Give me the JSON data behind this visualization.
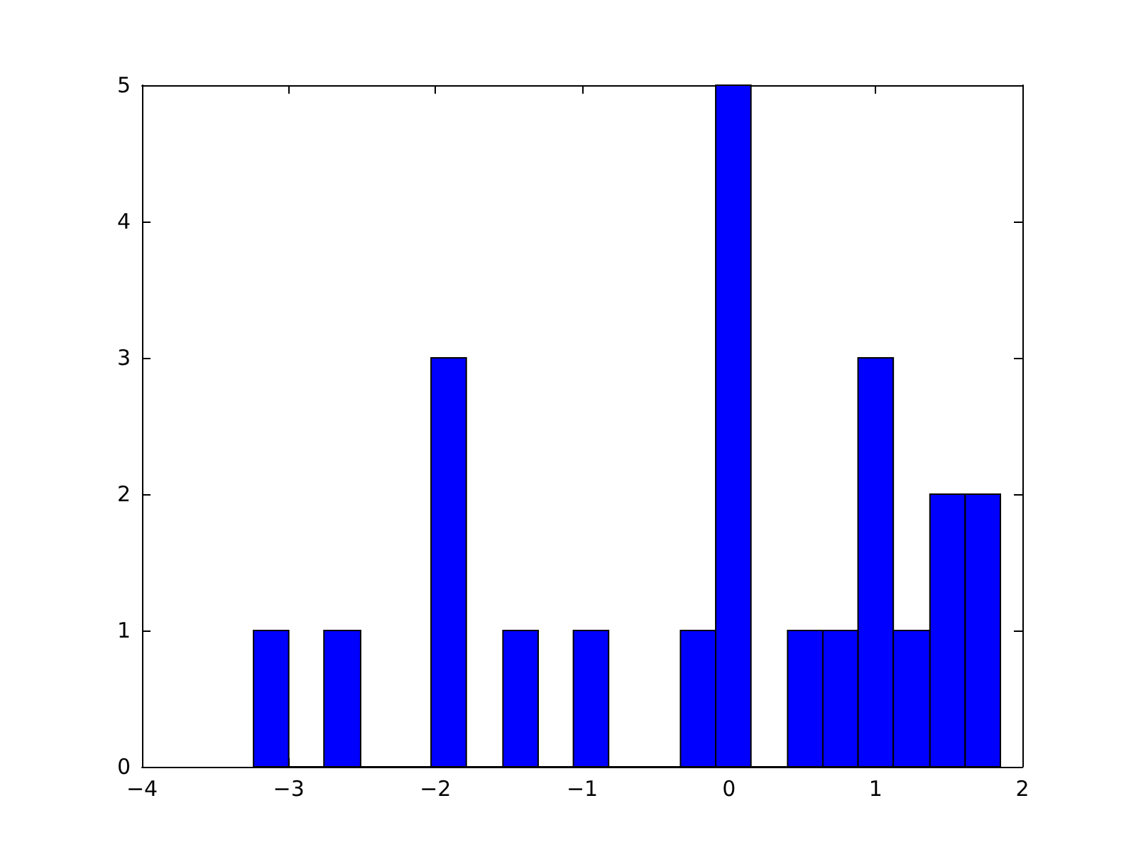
{
  "chart_data": {
    "type": "histogram",
    "bins": [
      -3.24,
      -3.0,
      -2.76,
      -2.51,
      -2.03,
      -1.79,
      -1.54,
      -1.3,
      -1.06,
      -0.82,
      -0.33,
      -0.09,
      0.15,
      0.4,
      0.64,
      0.88,
      1.12,
      1.37,
      1.61,
      1.85
    ],
    "values": [
      1,
      0,
      1,
      0,
      3,
      0,
      1,
      0,
      1,
      0,
      1,
      5,
      0,
      1,
      1,
      3,
      1,
      2,
      2
    ],
    "color": "#0000ff",
    "xlim": [
      -4,
      2
    ],
    "xticks": [
      {
        "value": -4,
        "label": "−4"
      },
      {
        "value": -3,
        "label": "−3"
      },
      {
        "value": -2,
        "label": "−2"
      },
      {
        "value": -1,
        "label": "−1"
      },
      0,
      1,
      2
    ],
    "ylim": [
      0,
      5
    ],
    "yticks": [
      0,
      1,
      2,
      3,
      4,
      5
    ],
    "grid": false
  }
}
